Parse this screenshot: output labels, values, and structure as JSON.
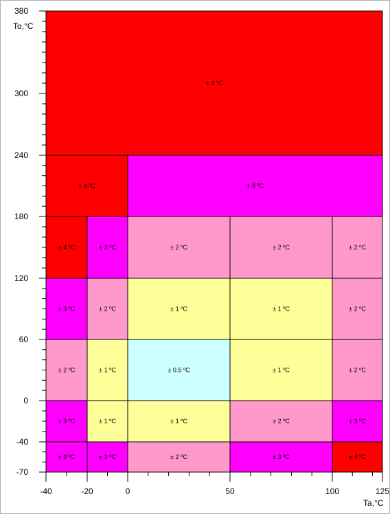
{
  "chart_data": {
    "type": "heatmap",
    "xlabel": "Ta,°C",
    "ylabel": "To,°C",
    "x_ticks": [
      "-40",
      "-20",
      "0",
      "50",
      "100",
      "125"
    ],
    "y_ticks": [
      "380",
      "300",
      "240",
      "180",
      "120",
      "60",
      "0",
      "-40",
      "-70"
    ],
    "x_breaks": [
      -40,
      -20,
      0,
      50,
      100,
      125
    ],
    "y_breaks": [
      -70,
      -40,
      0,
      60,
      120,
      180,
      240,
      380
    ],
    "colors": {
      "4": "#ff0000",
      "3": "#ff00ff",
      "2": "#ff99cc",
      "1": "#ffff99",
      "0.5": "#ccffff"
    },
    "cells": [
      {
        "x": [
          -40,
          125
        ],
        "y": [
          240,
          380
        ],
        "accuracy": "4",
        "label": "± 4 ºC"
      },
      {
        "x": [
          -40,
          0
        ],
        "y": [
          180,
          240
        ],
        "accuracy": "4",
        "label": "± 4 ºC"
      },
      {
        "x": [
          0,
          125
        ],
        "y": [
          180,
          240
        ],
        "accuracy": "3",
        "label": "± 3 ºC"
      },
      {
        "x": [
          -40,
          -20
        ],
        "y": [
          120,
          180
        ],
        "accuracy": "4",
        "label": "± 4 ºC"
      },
      {
        "x": [
          -20,
          0
        ],
        "y": [
          120,
          180
        ],
        "accuracy": "3",
        "label": "± 3 ºC"
      },
      {
        "x": [
          0,
          50
        ],
        "y": [
          120,
          180
        ],
        "accuracy": "2",
        "label": "± 2 ºC"
      },
      {
        "x": [
          50,
          100
        ],
        "y": [
          120,
          180
        ],
        "accuracy": "2",
        "label": "± 2 ºC"
      },
      {
        "x": [
          100,
          125
        ],
        "y": [
          120,
          180
        ],
        "accuracy": "2",
        "label": "± 2 ºC"
      },
      {
        "x": [
          -40,
          -20
        ],
        "y": [
          60,
          120
        ],
        "accuracy": "3",
        "label": "± 3 ºC"
      },
      {
        "x": [
          -20,
          0
        ],
        "y": [
          60,
          120
        ],
        "accuracy": "2",
        "label": "± 2 ºC"
      },
      {
        "x": [
          0,
          50
        ],
        "y": [
          60,
          120
        ],
        "accuracy": "1",
        "label": "± 1 ºC"
      },
      {
        "x": [
          50,
          100
        ],
        "y": [
          60,
          120
        ],
        "accuracy": "1",
        "label": "± 1 ºC"
      },
      {
        "x": [
          100,
          125
        ],
        "y": [
          60,
          120
        ],
        "accuracy": "2",
        "label": "± 2 ºC"
      },
      {
        "x": [
          -40,
          -20
        ],
        "y": [
          0,
          60
        ],
        "accuracy": "2",
        "label": "± 2 ºC"
      },
      {
        "x": [
          -20,
          0
        ],
        "y": [
          0,
          60
        ],
        "accuracy": "1",
        "label": "± 1 ºC"
      },
      {
        "x": [
          0,
          50
        ],
        "y": [
          0,
          60
        ],
        "accuracy": "0.5",
        "label": "± 0.5 ºC"
      },
      {
        "x": [
          50,
          100
        ],
        "y": [
          0,
          60
        ],
        "accuracy": "1",
        "label": "± 1 ºC"
      },
      {
        "x": [
          100,
          125
        ],
        "y": [
          0,
          60
        ],
        "accuracy": "2",
        "label": "± 2 ºC"
      },
      {
        "x": [
          -40,
          -20
        ],
        "y": [
          -40,
          0
        ],
        "accuracy": "3",
        "label": "± 3 ºC"
      },
      {
        "x": [
          -20,
          0
        ],
        "y": [
          -40,
          0
        ],
        "accuracy": "1",
        "label": "± 1 ºC"
      },
      {
        "x": [
          0,
          50
        ],
        "y": [
          -40,
          0
        ],
        "accuracy": "1",
        "label": "± 1 ºC"
      },
      {
        "x": [
          50,
          100
        ],
        "y": [
          -40,
          0
        ],
        "accuracy": "2",
        "label": "± 2 ºC"
      },
      {
        "x": [
          100,
          125
        ],
        "y": [
          -40,
          0
        ],
        "accuracy": "3",
        "label": "± 3 ºC"
      },
      {
        "x": [
          -40,
          -20
        ],
        "y": [
          -70,
          -40
        ],
        "accuracy": "3",
        "label": "± 3 ºC"
      },
      {
        "x": [
          -20,
          0
        ],
        "y": [
          -70,
          -40
        ],
        "accuracy": "3",
        "label": "± 3 ºC"
      },
      {
        "x": [
          0,
          50
        ],
        "y": [
          -70,
          -40
        ],
        "accuracy": "2",
        "label": "± 2 ºC"
      },
      {
        "x": [
          50,
          100
        ],
        "y": [
          -70,
          -40
        ],
        "accuracy": "3",
        "label": "± 3 ºC"
      },
      {
        "x": [
          100,
          125
        ],
        "y": [
          -70,
          -40
        ],
        "accuracy": "4",
        "label": "± 4 ºC"
      }
    ]
  }
}
